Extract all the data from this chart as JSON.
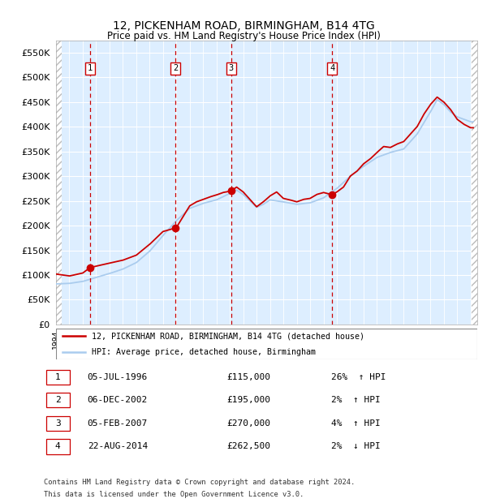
{
  "title": "12, PICKENHAM ROAD, BIRMINGHAM, B14 4TG",
  "subtitle": "Price paid vs. HM Land Registry's House Price Index (HPI)",
  "ytick_vals": [
    0,
    50000,
    100000,
    150000,
    200000,
    250000,
    300000,
    350000,
    400000,
    450000,
    500000,
    550000
  ],
  "ylim": [
    0,
    575000
  ],
  "xlim_start": 1994.0,
  "xlim_end": 2025.5,
  "transactions": [
    {
      "num": 1,
      "date": "05-JUL-1996",
      "price": 115000,
      "pct": "26%",
      "dir": "↑",
      "year": 1996.54
    },
    {
      "num": 2,
      "date": "06-DEC-2002",
      "price": 195000,
      "pct": "2%",
      "dir": "↑",
      "year": 2002.93
    },
    {
      "num": 3,
      "date": "05-FEB-2007",
      "price": 270000,
      "pct": "4%",
      "dir": "↑",
      "year": 2007.1
    },
    {
      "num": 4,
      "date": "22-AUG-2014",
      "price": 262500,
      "pct": "2%",
      "dir": "↓",
      "year": 2014.64
    }
  ],
  "legend_line1": "12, PICKENHAM ROAD, BIRMINGHAM, B14 4TG (detached house)",
  "legend_line2": "HPI: Average price, detached house, Birmingham",
  "footer1": "Contains HM Land Registry data © Crown copyright and database right 2024.",
  "footer2": "This data is licensed under the Open Government Licence v3.0.",
  "hpi_color": "#aaccee",
  "price_color": "#cc0000",
  "bg_color": "#ddeeff",
  "grid_color": "#ffffff",
  "vline_color": "#cc0000"
}
